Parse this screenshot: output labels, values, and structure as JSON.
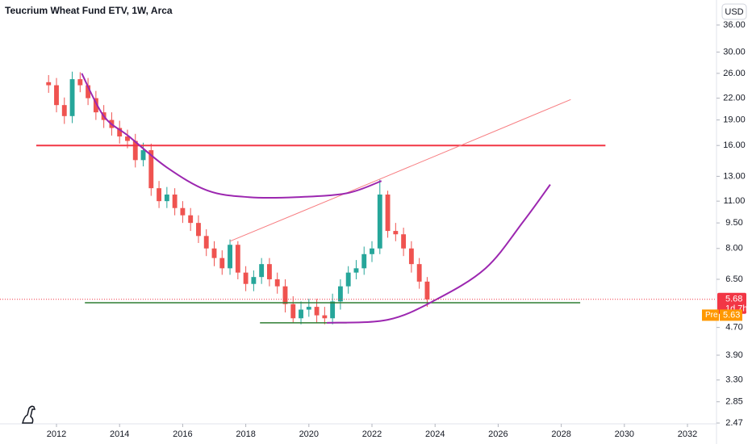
{
  "chart_data": {
    "type": "candlestick",
    "title": "Teucrium Wheat Fund ETV, 1W, Arca",
    "currency": "USD",
    "log_scale": true,
    "x": [
      2011.75,
      2012,
      2012.25,
      2012.5,
      2012.75,
      2013,
      2013.25,
      2013.5,
      2013.75,
      2014,
      2014.25,
      2014.5,
      2014.75,
      2015,
      2015.25,
      2015.5,
      2015.75,
      2016,
      2016.25,
      2016.5,
      2016.75,
      2017,
      2017.25,
      2017.5,
      2017.75,
      2018,
      2018.25,
      2018.5,
      2018.75,
      2019,
      2019.25,
      2019.5,
      2019.75,
      2020,
      2020.25,
      2020.5,
      2020.75,
      2021,
      2021.25,
      2021.5,
      2021.75,
      2022,
      2022.25,
      2022.5,
      2022.75,
      2023,
      2023.25,
      2023.5,
      2023.75
    ],
    "open": [
      24.5,
      24,
      21,
      19.5,
      25,
      24,
      22,
      20,
      19,
      18,
      17,
      16.5,
      14.5,
      15.5,
      12,
      11,
      11.5,
      10.5,
      10,
      9.5,
      8.7,
      8,
      7.5,
      7,
      8.2,
      6.8,
      6.3,
      6.6,
      7.2,
      6.5,
      6.2,
      5.5,
      5.0,
      5.3,
      5.4,
      5.1,
      5.0,
      5.6,
      6.2,
      6.8,
      7.0,
      7.7,
      8.0,
      11.5,
      9.0,
      8.8,
      8.0,
      7.2,
      6.4
    ],
    "high": [
      25.7,
      25.2,
      22.1,
      26.3,
      26.2,
      25.2,
      23.1,
      21,
      20,
      18.9,
      17.8,
      17.3,
      16.3,
      16.2,
      12.6,
      12.1,
      12,
      11,
      10.5,
      10,
      9.1,
      8.4,
      7.9,
      8.5,
      8.4,
      7.1,
      6.9,
      7.5,
      7.5,
      6.8,
      6.5,
      5.8,
      5.6,
      5.7,
      5.7,
      5.4,
      5.9,
      6.5,
      7.1,
      7.4,
      8.1,
      8.4,
      12.7,
      11.8,
      9.5,
      9.2,
      8.4,
      7.5,
      6.6
    ],
    "low": [
      22.8,
      20,
      18.5,
      18.6,
      22.9,
      21,
      19,
      18,
      17.1,
      16.2,
      15.7,
      13.8,
      13.9,
      11.4,
      10.5,
      10.5,
      10,
      9.5,
      9,
      8.3,
      7.6,
      7.1,
      6.7,
      6.7,
      6.5,
      6,
      6,
      6.3,
      6.2,
      5.9,
      5.2,
      4.85,
      4.8,
      5.05,
      4.85,
      4.8,
      4.8,
      5.3,
      5.9,
      6.5,
      6.7,
      7.3,
      7.7,
      8.6,
      8.4,
      7.6,
      6.8,
      6.1,
      5.4
    ],
    "close": [
      24,
      21,
      19.5,
      25,
      24,
      22,
      20,
      19,
      18,
      17,
      16.5,
      14.5,
      15.5,
      12,
      11,
      11.5,
      10.5,
      10,
      9.5,
      8.7,
      8,
      7.5,
      7,
      8.2,
      6.8,
      6.3,
      6.6,
      7.2,
      6.5,
      6.2,
      5.5,
      5.0,
      5.3,
      5.4,
      5.1,
      5.0,
      5.6,
      6.2,
      6.8,
      7.0,
      7.7,
      8.0,
      11.5,
      9.0,
      8.8,
      8.0,
      7.2,
      6.4,
      5.68
    ],
    "up_color": "#26a69a",
    "down_color": "#ef5350",
    "xlim": [
      2010.21,
      2032.92
    ],
    "xticks": [
      2012,
      2014,
      2016,
      2018,
      2020,
      2022,
      2024,
      2026,
      2028,
      2030,
      2032
    ],
    "ylim": [
      2.457,
      42.6
    ],
    "yticks": [
      {
        "value": 36,
        "label": "36.00"
      },
      {
        "value": 30,
        "label": "30.00"
      },
      {
        "value": 26,
        "label": "26.00"
      },
      {
        "value": 22,
        "label": "22.00"
      },
      {
        "value": 19,
        "label": "19.00"
      },
      {
        "value": 16,
        "label": "16.00"
      },
      {
        "value": 13,
        "label": "13.00"
      },
      {
        "value": 11,
        "label": "11.00"
      },
      {
        "value": 9.5,
        "label": "9.50"
      },
      {
        "value": 8,
        "label": "8.00"
      },
      {
        "value": 6.5,
        "label": "6.50"
      },
      {
        "value": 4.7,
        "label": "4.70"
      },
      {
        "value": 3.9,
        "label": "3.90"
      },
      {
        "value": 3.3,
        "label": "3.30"
      },
      {
        "value": 2.85,
        "label": "2.85"
      },
      {
        "value": 2.47,
        "label": "2.47"
      }
    ],
    "last_price": 5.68,
    "last_price_color": "#f23645",
    "countdown": "1d 7h",
    "premarket_label": "Pre",
    "premarket_price": 5.63,
    "premarket_color": "#ff9800",
    "drawings": [
      {
        "color": "#f23645",
        "width": 2,
        "x": [
          2011.36,
          2029.4
        ],
        "values": [
          16,
          16
        ]
      },
      {
        "color": "#2e7d32",
        "width": 1.5,
        "x": [
          2012.9,
          2028.6
        ],
        "values": [
          5.55,
          5.55
        ]
      },
      {
        "color": "#2e7d32",
        "width": 1.5,
        "x": [
          2018.45,
          2021.2
        ],
        "values": [
          4.85,
          4.85
        ]
      },
      {
        "color": "#f77c80",
        "width": 1,
        "x": [
          2017.5,
          2022.2,
          2028.3
        ],
        "values": [
          8.4,
          12.7,
          21.8
        ]
      },
      {
        "color": "#9c27b0",
        "width": 2,
        "x": [
          2012.8,
          2013.5,
          2014.3,
          2015.5,
          2016.8,
          2018.1,
          2019.6,
          2021.2,
          2022.3
        ],
        "values": [
          26,
          19.5,
          17,
          13.8,
          11.8,
          11.3,
          11.3,
          11.6,
          12.6
        ]
      },
      {
        "color": "#9c27b0",
        "width": 2,
        "x": [
          2020.57,
          2022.5,
          2024.0,
          2025.6,
          2026.8,
          2027.65
        ],
        "values": [
          4.85,
          4.95,
          5.65,
          7.0,
          9.6,
          12.3
        ]
      }
    ]
  }
}
